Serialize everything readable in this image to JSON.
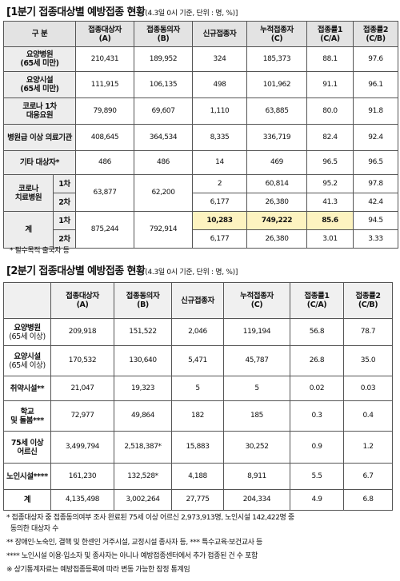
{
  "table1": {
    "title": "[1분기 접종대상별 예방접종 현황",
    "subtitle": "(4.3일 0시 기준, 단위 : 명, %)]",
    "headers": [
      "구 분",
      "접종대상자\n(A)",
      "접종동의자\n(B)",
      "신규접종자",
      "누적접종자\n(C)",
      "접종률1\n(C/A)",
      "접종률2\n(C/B)"
    ],
    "rows": [
      {
        "label": "요양병원\n(65세 미만)",
        "cells": [
          "210,431",
          "189,952",
          "324",
          "185,373",
          "88.1",
          "97.6"
        ]
      },
      {
        "label": "요양시설\n(65세 미만)",
        "cells": [
          "111,915",
          "106,135",
          "498",
          "101,962",
          "91.1",
          "96.1"
        ]
      },
      {
        "label": "코로나 1차\n대응요원",
        "cells": [
          "79,890",
          "69,607",
          "1,110",
          "63,885",
          "80.0",
          "91.8"
        ]
      },
      {
        "label": "병원급 이상 의료기관",
        "cells": [
          "408,645",
          "364,534",
          "8,335",
          "336,719",
          "82.4",
          "92.4"
        ]
      },
      {
        "label": "기타 대상자*",
        "cells": [
          "486",
          "486",
          "14",
          "469",
          "96.5",
          "96.5"
        ]
      }
    ],
    "covid_hospital": {
      "label": "코로나\n치료병원",
      "target": "63,877",
      "consent": "62,200",
      "dose1": {
        "label": "1차",
        "new": "2",
        "cumulative": "60,814",
        "rate1": "95.2",
        "rate2": "97.8"
      },
      "dose2": {
        "label": "2차",
        "new": "6,177",
        "cumulative": "26,380",
        "rate1": "41.3",
        "rate2": "42.4"
      }
    },
    "total": {
      "label": "계",
      "target": "875,244",
      "consent": "792,914",
      "dose1": {
        "label": "1차",
        "new": "10,283",
        "cumulative": "749,222",
        "rate1": "85.6",
        "rate2": "94.5"
      },
      "dose2": {
        "label": "2차",
        "new": "6,177",
        "cumulative": "26,380",
        "rate1": "3.01",
        "rate2": "3.33"
      }
    },
    "note": "* 필수목적 출국자 등"
  },
  "table2": {
    "title": "[2분기 접종대상별 예방접종 현황",
    "subtitle": "(4.3일 0시 기준, 단위 : 명, %)]",
    "headers": [
      "",
      "접종대상자\n(A)",
      "접종동의자\n(B)",
      "신규접종자",
      "누적접종자\n(C)",
      "접종률1\n(C/A)",
      "접종률2\n(C/B)"
    ],
    "rows": [
      {
        "label": "요양병원\n(65세 이상)",
        "cells": [
          "209,918",
          "151,522",
          "2,046",
          "119,194",
          "56.8",
          "78.7"
        ]
      },
      {
        "label": "요양시설\n(65세 이상)",
        "cells": [
          "170,532",
          "130,640",
          "5,471",
          "45,787",
          "26.8",
          "35.0"
        ]
      },
      {
        "label": "취약시설**",
        "cells": [
          "21,047",
          "19,323",
          "5",
          "5",
          "0.02",
          "0.03"
        ]
      },
      {
        "label": "학교\n및 돌봄***",
        "cells": [
          "72,977",
          "49,864",
          "182",
          "185",
          "0.3",
          "0.4"
        ]
      },
      {
        "label": "75세 이상\n어르신",
        "cells": [
          "3,499,794",
          "2,518,387*",
          "15,883",
          "30,252",
          "0.9",
          "1.2"
        ]
      },
      {
        "label": "노인시설****",
        "cells": [
          "161,230",
          "132,528*",
          "4,188",
          "8,911",
          "5.5",
          "6.7"
        ]
      },
      {
        "label": "계",
        "cells": [
          "4,135,498",
          "3,002,264",
          "27,775",
          "204,334",
          "4.9",
          "6.8"
        ]
      }
    ],
    "notes": [
      "* 접종대상자 중 접종동의여부 조사 완료된 75세 이상 어르신 2,973,913명, 노인시설 142,422명 중",
      "  동의한 대상자 수",
      "** 장애인·노숙인, 결핵 및 한센인 거주시설, 교정시설 종사자 등, *** 특수교육·보건교사 등",
      "**** 노인시설 이용·입소자 및 종사자는 아니나 예방접종센터에서 추가 접종된 건 수 포함",
      "※ 상기통계자료는 예방접종등록에 따라 변동 가능한 잠정 통계임"
    ]
  }
}
